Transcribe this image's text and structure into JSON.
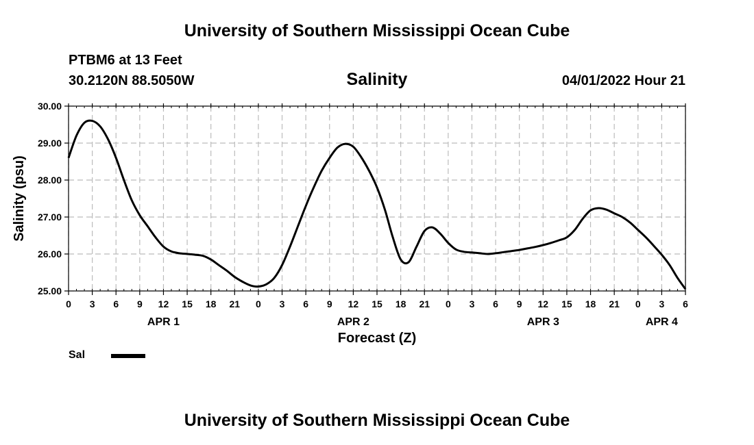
{
  "header": {
    "title": "University of Southern Mississippi Ocean Cube",
    "station": "PTBM6 at 13 Feet",
    "coords": "30.2120N  88.5050W",
    "timestamp": "04/01/2022 Hour 21"
  },
  "footer": {
    "title": "University of Southern Mississippi Ocean Cube"
  },
  "legend": {
    "label": "Sal"
  },
  "chart_data": {
    "type": "line",
    "title": "Salinity",
    "xlabel": "Forecast (Z)",
    "ylabel": "Salinity (psu)",
    "ylim": [
      25.0,
      30.0
    ],
    "yticks": [
      "25.00",
      "26.00",
      "27.00",
      "28.00",
      "29.00",
      "30.00"
    ],
    "xlim_hours": [
      0,
      78
    ],
    "xticks": [
      "0",
      "3",
      "6",
      "9",
      "12",
      "15",
      "18",
      "21",
      "0",
      "3",
      "6",
      "9",
      "12",
      "15",
      "18",
      "21",
      "0",
      "3",
      "6",
      "9",
      "12",
      "15",
      "18",
      "21",
      "0",
      "3",
      "6"
    ],
    "day_labels": [
      {
        "label": "APR 1",
        "hour": 12
      },
      {
        "label": "APR 2",
        "hour": 36
      },
      {
        "label": "APR 3",
        "hour": 60
      },
      {
        "label": "APR 4",
        "hour": 75
      }
    ],
    "grid": true,
    "series": [
      {
        "name": "Sal",
        "color": "#000000",
        "hours": [
          0,
          1,
          2,
          3,
          4,
          5,
          6,
          7,
          8,
          9,
          10,
          11,
          12,
          13,
          14,
          15,
          16,
          17,
          18,
          19,
          20,
          21,
          22,
          23,
          24,
          25,
          26,
          27,
          28,
          29,
          30,
          31,
          32,
          33,
          34,
          35,
          36,
          37,
          38,
          39,
          40,
          41,
          42,
          43,
          44,
          45,
          46,
          47,
          48,
          49,
          50,
          51,
          52,
          53,
          54,
          55,
          56,
          57,
          58,
          59,
          60,
          61,
          62,
          63,
          64,
          65,
          66,
          67,
          68,
          69,
          70,
          71,
          72,
          73,
          74,
          75,
          76,
          77,
          78
        ],
        "values": [
          28.6,
          29.2,
          29.55,
          29.6,
          29.45,
          29.1,
          28.6,
          28.0,
          27.45,
          27.05,
          26.75,
          26.45,
          26.2,
          26.07,
          26.02,
          26.0,
          25.98,
          25.95,
          25.85,
          25.7,
          25.55,
          25.38,
          25.25,
          25.15,
          25.12,
          25.18,
          25.35,
          25.7,
          26.2,
          26.75,
          27.3,
          27.8,
          28.25,
          28.6,
          28.88,
          28.98,
          28.9,
          28.62,
          28.25,
          27.8,
          27.2,
          26.45,
          25.85,
          25.78,
          26.2,
          26.62,
          26.72,
          26.55,
          26.3,
          26.12,
          26.06,
          26.04,
          26.02,
          26.0,
          26.02,
          26.05,
          26.08,
          26.11,
          26.15,
          26.19,
          26.24,
          26.3,
          26.37,
          26.45,
          26.65,
          26.95,
          27.18,
          27.24,
          27.2,
          27.1,
          27.0,
          26.85,
          26.65,
          26.45,
          26.22,
          25.98,
          25.7,
          25.35,
          25.05
        ]
      }
    ]
  }
}
